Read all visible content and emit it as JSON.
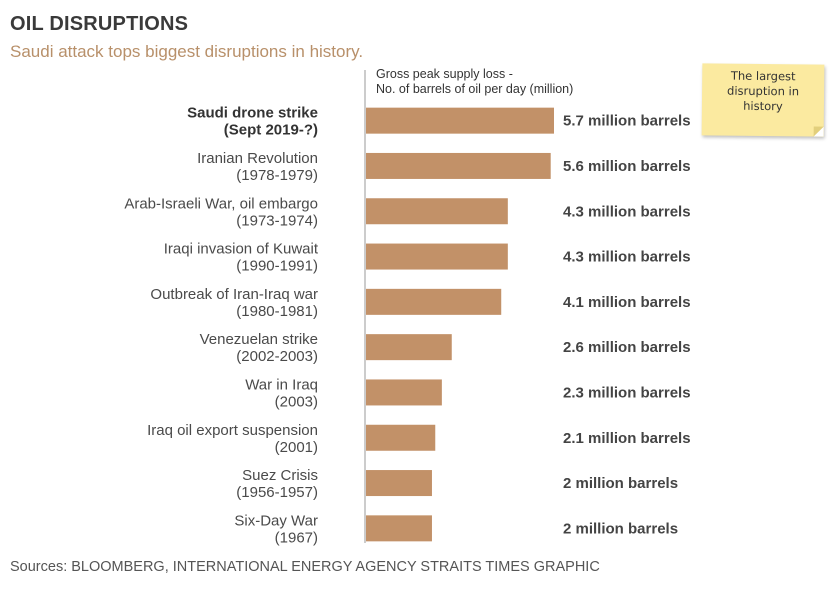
{
  "title": "OIL DISRUPTIONS",
  "subtitle": "Saudi attack tops biggest disruptions in history.",
  "note": "The largest disruption in history",
  "source": "Sources: BLOOMBERG, INTERNATIONAL ENERGY AGENCY STRAITS TIMES GRAPHIC",
  "colors": {
    "bar": "#c29168",
    "axis": "#999999",
    "subtitle": "#b8906a"
  },
  "chart_data": {
    "type": "bar",
    "orientation": "horizontal",
    "xlabel": [
      "Gross peak supply loss -",
      "No. of barrels of oil per day (million)"
    ],
    "categories": [
      [
        "Saudi drone strike",
        "(Sept 2019-?)"
      ],
      [
        "Iranian Revolution",
        "(1978-1979)"
      ],
      [
        "Arab-Israeli War, oil embargo",
        "(1973-1974)"
      ],
      [
        "Iraqi invasion of Kuwait",
        "(1990-1991)"
      ],
      [
        "Outbreak of Iran-Iraq war",
        "(1980-1981)"
      ],
      [
        "Venezuelan strike",
        "(2002-2003)"
      ],
      [
        "War in Iraq",
        "(2003)"
      ],
      [
        "Iraq oil export suspension",
        "(2001)"
      ],
      [
        "Suez Crisis",
        "(1956-1957)"
      ],
      [
        "Six-Day War",
        "(1967)"
      ]
    ],
    "values": [
      5.7,
      5.6,
      4.3,
      4.3,
      4.1,
      2.6,
      2.3,
      2.1,
      2,
      2
    ],
    "data_labels": [
      "5.7 million barrels",
      "5.6 million barrels",
      "4.3 million barrels",
      "4.3 million barrels",
      "4.1 million barrels",
      "2.6 million barrels",
      "2.3 million barrels",
      "2.1 million barrels",
      "2 million barrels",
      "2 million barrels"
    ],
    "xlim": [
      0,
      5.7
    ],
    "grid": false,
    "legend": "none"
  }
}
